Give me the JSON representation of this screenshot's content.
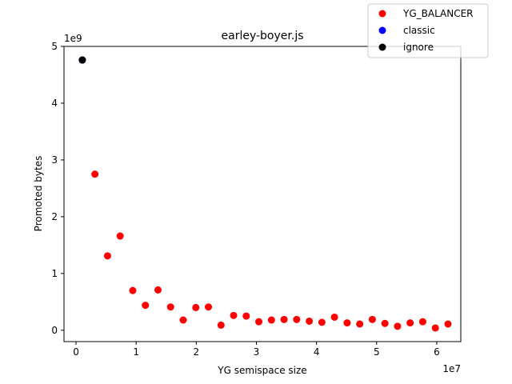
{
  "chart_data": {
    "type": "scatter",
    "title": "earley-boyer.js",
    "xlabel": "YG semispace size",
    "ylabel": "Promoted bytes",
    "x_offset_text": "1e7",
    "y_offset_text": "1e9",
    "xlim": [
      -2000000,
      64000000
    ],
    "ylim": [
      -200000000,
      5000000000
    ],
    "x_ticks": [
      0,
      10000000,
      20000000,
      30000000,
      40000000,
      50000000,
      60000000
    ],
    "x_tick_labels": [
      "0",
      "1",
      "2",
      "3",
      "4",
      "5",
      "6"
    ],
    "y_ticks": [
      0,
      1000000000,
      2000000000,
      3000000000,
      4000000000,
      5000000000
    ],
    "y_tick_labels": [
      "0",
      "1",
      "2",
      "3",
      "4",
      "5"
    ],
    "grid": false,
    "legend_position": "top-right",
    "series": [
      {
        "name": "YG_BALANCER",
        "color": "#ff0000",
        "x": [
          1048576,
          3145728,
          5242880,
          7340032,
          9437184,
          11534336,
          13631488,
          15728640,
          17825792,
          19922944,
          22020096,
          24117248,
          26214400,
          28311552,
          30408704,
          32505856,
          34603008,
          36700160,
          38797312,
          40894464,
          42991616,
          45088768,
          47185920,
          49283072,
          51380224,
          53477376,
          55574528,
          57671680,
          59768832,
          61865984
        ],
        "y": [
          4760000000,
          2750000000,
          1310000000,
          1660000000,
          700000000,
          440000000,
          710000000,
          410000000,
          180000000,
          400000000,
          410000000,
          90000000,
          260000000,
          250000000,
          150000000,
          180000000,
          190000000,
          190000000,
          160000000,
          140000000,
          230000000,
          130000000,
          110000000,
          190000000,
          120000000,
          70000000,
          130000000,
          150000000,
          40000000,
          110000000
        ]
      },
      {
        "name": "classic",
        "color": "#0000ff",
        "x": [
          1048576
        ],
        "y": [
          4760000000
        ]
      },
      {
        "name": "ignore",
        "color": "#000000",
        "x": [
          1048576
        ],
        "y": [
          4760000000
        ]
      }
    ]
  }
}
